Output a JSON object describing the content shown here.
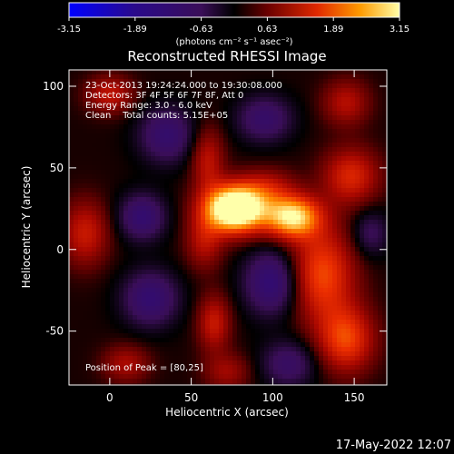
{
  "chart_data": {
    "type": "heatmap",
    "title": "Reconstructed RHESSI Image",
    "xlabel": "Heliocentric X (arcsec)",
    "ylabel": "Heliocentric Y (arcsec)",
    "xlim": [
      -25,
      170
    ],
    "ylim": [
      -83,
      110
    ],
    "xticks": [
      0,
      50,
      100,
      150
    ],
    "yticks": [
      -50,
      0,
      50,
      100
    ],
    "colorbar": {
      "min": -3.15,
      "max": 3.15,
      "ticks": [
        "-3.15",
        "-1.89",
        "-0.63",
        "0.63",
        "1.89",
        "3.15"
      ],
      "unit_label": "(photons cm⁻² s⁻¹ asec⁻²)"
    },
    "annotations": [
      "23-Oct-2013 19:24:24.000 to 19:30:08.000",
      "Detectors: 3F 4F 5F 6F 7F 8F, Att 0",
      "Energy Range: 3.0 - 6.0 keV",
      "Clean    Total counts: 5.15E+05"
    ],
    "peak_label": "Position of Peak = [80,25]",
    "peak": [
      80,
      25
    ],
    "sources": [
      {
        "x": 77,
        "y": 25,
        "sx": 13,
        "sy": 10,
        "amp": 4.3
      },
      {
        "x": 112,
        "y": 20,
        "sx": 12,
        "sy": 9,
        "amp": 2.9
      },
      {
        "x": 97,
        "y": 38,
        "sx": 12,
        "sy": 8,
        "amp": 0.9
      },
      {
        "x": 60,
        "y": 55,
        "sx": 7,
        "sy": 14,
        "amp": 1.1
      },
      {
        "x": 58,
        "y": 5,
        "sx": 8,
        "sy": 12,
        "amp": 1.0
      },
      {
        "x": 64,
        "y": -45,
        "sx": 7,
        "sy": 12,
        "amp": 1.2
      },
      {
        "x": 72,
        "y": -75,
        "sx": 10,
        "sy": 8,
        "amp": 0.8
      },
      {
        "x": 130,
        "y": -15,
        "sx": 14,
        "sy": 20,
        "amp": 1.8
      },
      {
        "x": 145,
        "y": -55,
        "sx": 12,
        "sy": 14,
        "amp": 1.7
      },
      {
        "x": 148,
        "y": 45,
        "sx": 12,
        "sy": 12,
        "amp": 1.4
      },
      {
        "x": 145,
        "y": 90,
        "sx": 10,
        "sy": 10,
        "amp": 1.0
      },
      {
        "x": -15,
        "y": 10,
        "sx": 10,
        "sy": 14,
        "amp": 1.2
      },
      {
        "x": 0,
        "y": 95,
        "sx": 10,
        "sy": 8,
        "amp": 1.1
      },
      {
        "x": 10,
        "y": -70,
        "sx": 10,
        "sy": 8,
        "amp": 0.9
      },
      {
        "x": 20,
        "y": 20,
        "sx": 10,
        "sy": 10,
        "amp": -1.3
      },
      {
        "x": 35,
        "y": 70,
        "sx": 12,
        "sy": 12,
        "amp": -1.2
      },
      {
        "x": 25,
        "y": -30,
        "sx": 12,
        "sy": 12,
        "amp": -1.3
      },
      {
        "x": 100,
        "y": -20,
        "sx": 12,
        "sy": 14,
        "amp": -1.5
      },
      {
        "x": 95,
        "y": 80,
        "sx": 12,
        "sy": 10,
        "amp": -1.1
      },
      {
        "x": 110,
        "y": -70,
        "sx": 12,
        "sy": 10,
        "amp": -1.0
      },
      {
        "x": 160,
        "y": 10,
        "sx": 8,
        "sy": 10,
        "amp": -0.8
      }
    ],
    "background": 0.1
  },
  "timestamp": "17-May-2022 12:07"
}
